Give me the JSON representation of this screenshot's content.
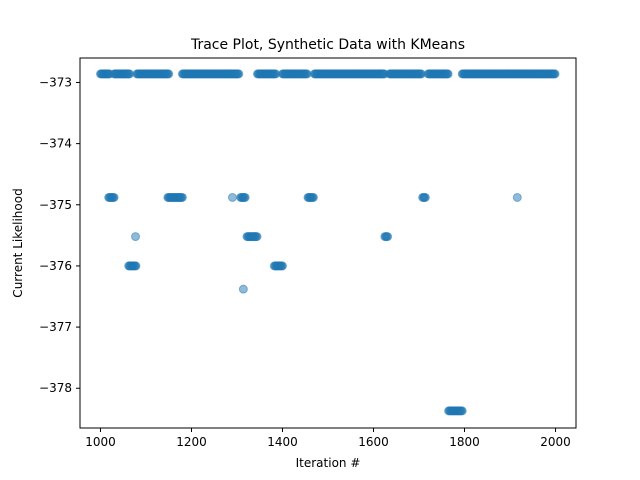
{
  "chart_data": {
    "type": "scatter",
    "title": "Trace Plot, Synthetic Data with KMeans",
    "xlabel": "Iteration #",
    "ylabel": "Current Likelihood",
    "xlim": [
      955,
      2045
    ],
    "ylim": [
      -378.65,
      -372.6
    ],
    "x_ticks": [
      1000,
      1200,
      1400,
      1600,
      1800,
      2000
    ],
    "y_ticks": [
      -373,
      -374,
      -375,
      -376,
      -377,
      -378
    ],
    "x_tick_labels": [
      "1000",
      "1200",
      "1400",
      "1600",
      "1800",
      "2000"
    ],
    "y_tick_labels": [
      "−373",
      "−374",
      "−375",
      "−376",
      "−377",
      "−378"
    ],
    "grid": false,
    "marker_color": "#1f77b4",
    "marker_alpha": 0.5,
    "series": [
      {
        "runs": [
          {
            "y": -372.86,
            "x_start": 1000,
            "x_end": 1020
          },
          {
            "y": -372.86,
            "x_start": 1030,
            "x_end": 1065
          },
          {
            "y": -372.86,
            "x_start": 1080,
            "x_end": 1150
          },
          {
            "y": -372.86,
            "x_start": 1180,
            "x_end": 1305
          },
          {
            "y": -372.86,
            "x_start": 1345,
            "x_end": 1385
          },
          {
            "y": -372.86,
            "x_start": 1400,
            "x_end": 1455
          },
          {
            "y": -372.86,
            "x_start": 1470,
            "x_end": 1625
          },
          {
            "y": -372.86,
            "x_start": 1635,
            "x_end": 1705
          },
          {
            "y": -372.86,
            "x_start": 1720,
            "x_end": 1765
          },
          {
            "y": -372.86,
            "x_start": 1795,
            "x_end": 2000
          },
          {
            "y": -374.88,
            "x_start": 1018,
            "x_end": 1030
          },
          {
            "y": -374.88,
            "x_start": 1148,
            "x_end": 1180
          },
          {
            "y": -374.88,
            "x_start": 1308,
            "x_end": 1318
          },
          {
            "y": -374.88,
            "x_start": 1456,
            "x_end": 1468
          },
          {
            "y": -374.88,
            "x_start": 1708,
            "x_end": 1715
          },
          {
            "y": -376.0,
            "x_start": 1062,
            "x_end": 1078
          },
          {
            "y": -376.0,
            "x_start": 1382,
            "x_end": 1400
          },
          {
            "y": -375.52,
            "x_start": 1322,
            "x_end": 1345
          },
          {
            "y": -375.52,
            "x_start": 1625,
            "x_end": 1632
          },
          {
            "y": -378.37,
            "x_start": 1765,
            "x_end": 1795
          }
        ],
        "points": [
          {
            "x": 1077,
            "y": -375.52
          },
          {
            "x": 1290,
            "y": -374.88
          },
          {
            "x": 1314,
            "y": -376.38
          },
          {
            "x": 1916,
            "y": -374.88
          }
        ]
      }
    ]
  }
}
